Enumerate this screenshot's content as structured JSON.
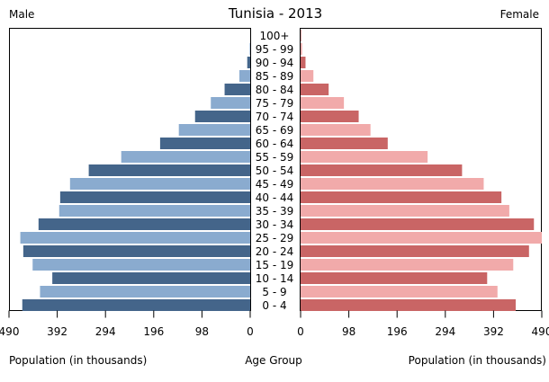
{
  "chart_data": {
    "type": "bar",
    "title": "Tunisia - 2013",
    "left_label": "Male",
    "right_label": "Female",
    "xlabel_left": "Population (in thousands)",
    "xlabel_center": "Age Group",
    "xlabel_right": "Population (in thousands)",
    "xlim": [
      0,
      490
    ],
    "ticks_left": [
      "490",
      "392",
      "294",
      "196",
      "98",
      "0"
    ],
    "ticks_right": [
      "0",
      "98",
      "196",
      "294",
      "392",
      "490"
    ],
    "tick_values": [
      490,
      392,
      294,
      196,
      98,
      0
    ],
    "categories": [
      "100+",
      "95 - 99",
      "90 - 94",
      "85 - 89",
      "80 - 84",
      "75 - 79",
      "70 - 74",
      "65 - 69",
      "60 - 64",
      "55 - 59",
      "50 - 54",
      "45 - 49",
      "40 - 44",
      "35 - 39",
      "30 - 34",
      "25 - 29",
      "20 - 24",
      "15 - 19",
      "10 - 14",
      "5 - 9",
      "0 - 4"
    ],
    "series": [
      {
        "name": "Male",
        "side": "left",
        "color_a": "#44658a",
        "color_b": "#8aabcf",
        "values": [
          0,
          1,
          6,
          22,
          52,
          80,
          112,
          145,
          183,
          262,
          328,
          366,
          386,
          388,
          430,
          467,
          461,
          442,
          402,
          427,
          463
        ]
      },
      {
        "name": "Female",
        "side": "right",
        "color_a": "#c96565",
        "color_b": "#f1aaaa",
        "values": [
          1,
          3,
          10,
          26,
          57,
          88,
          118,
          142,
          177,
          258,
          328,
          372,
          408,
          424,
          474,
          490,
          464,
          432,
          379,
          400,
          437
        ]
      }
    ],
    "grid": false
  }
}
